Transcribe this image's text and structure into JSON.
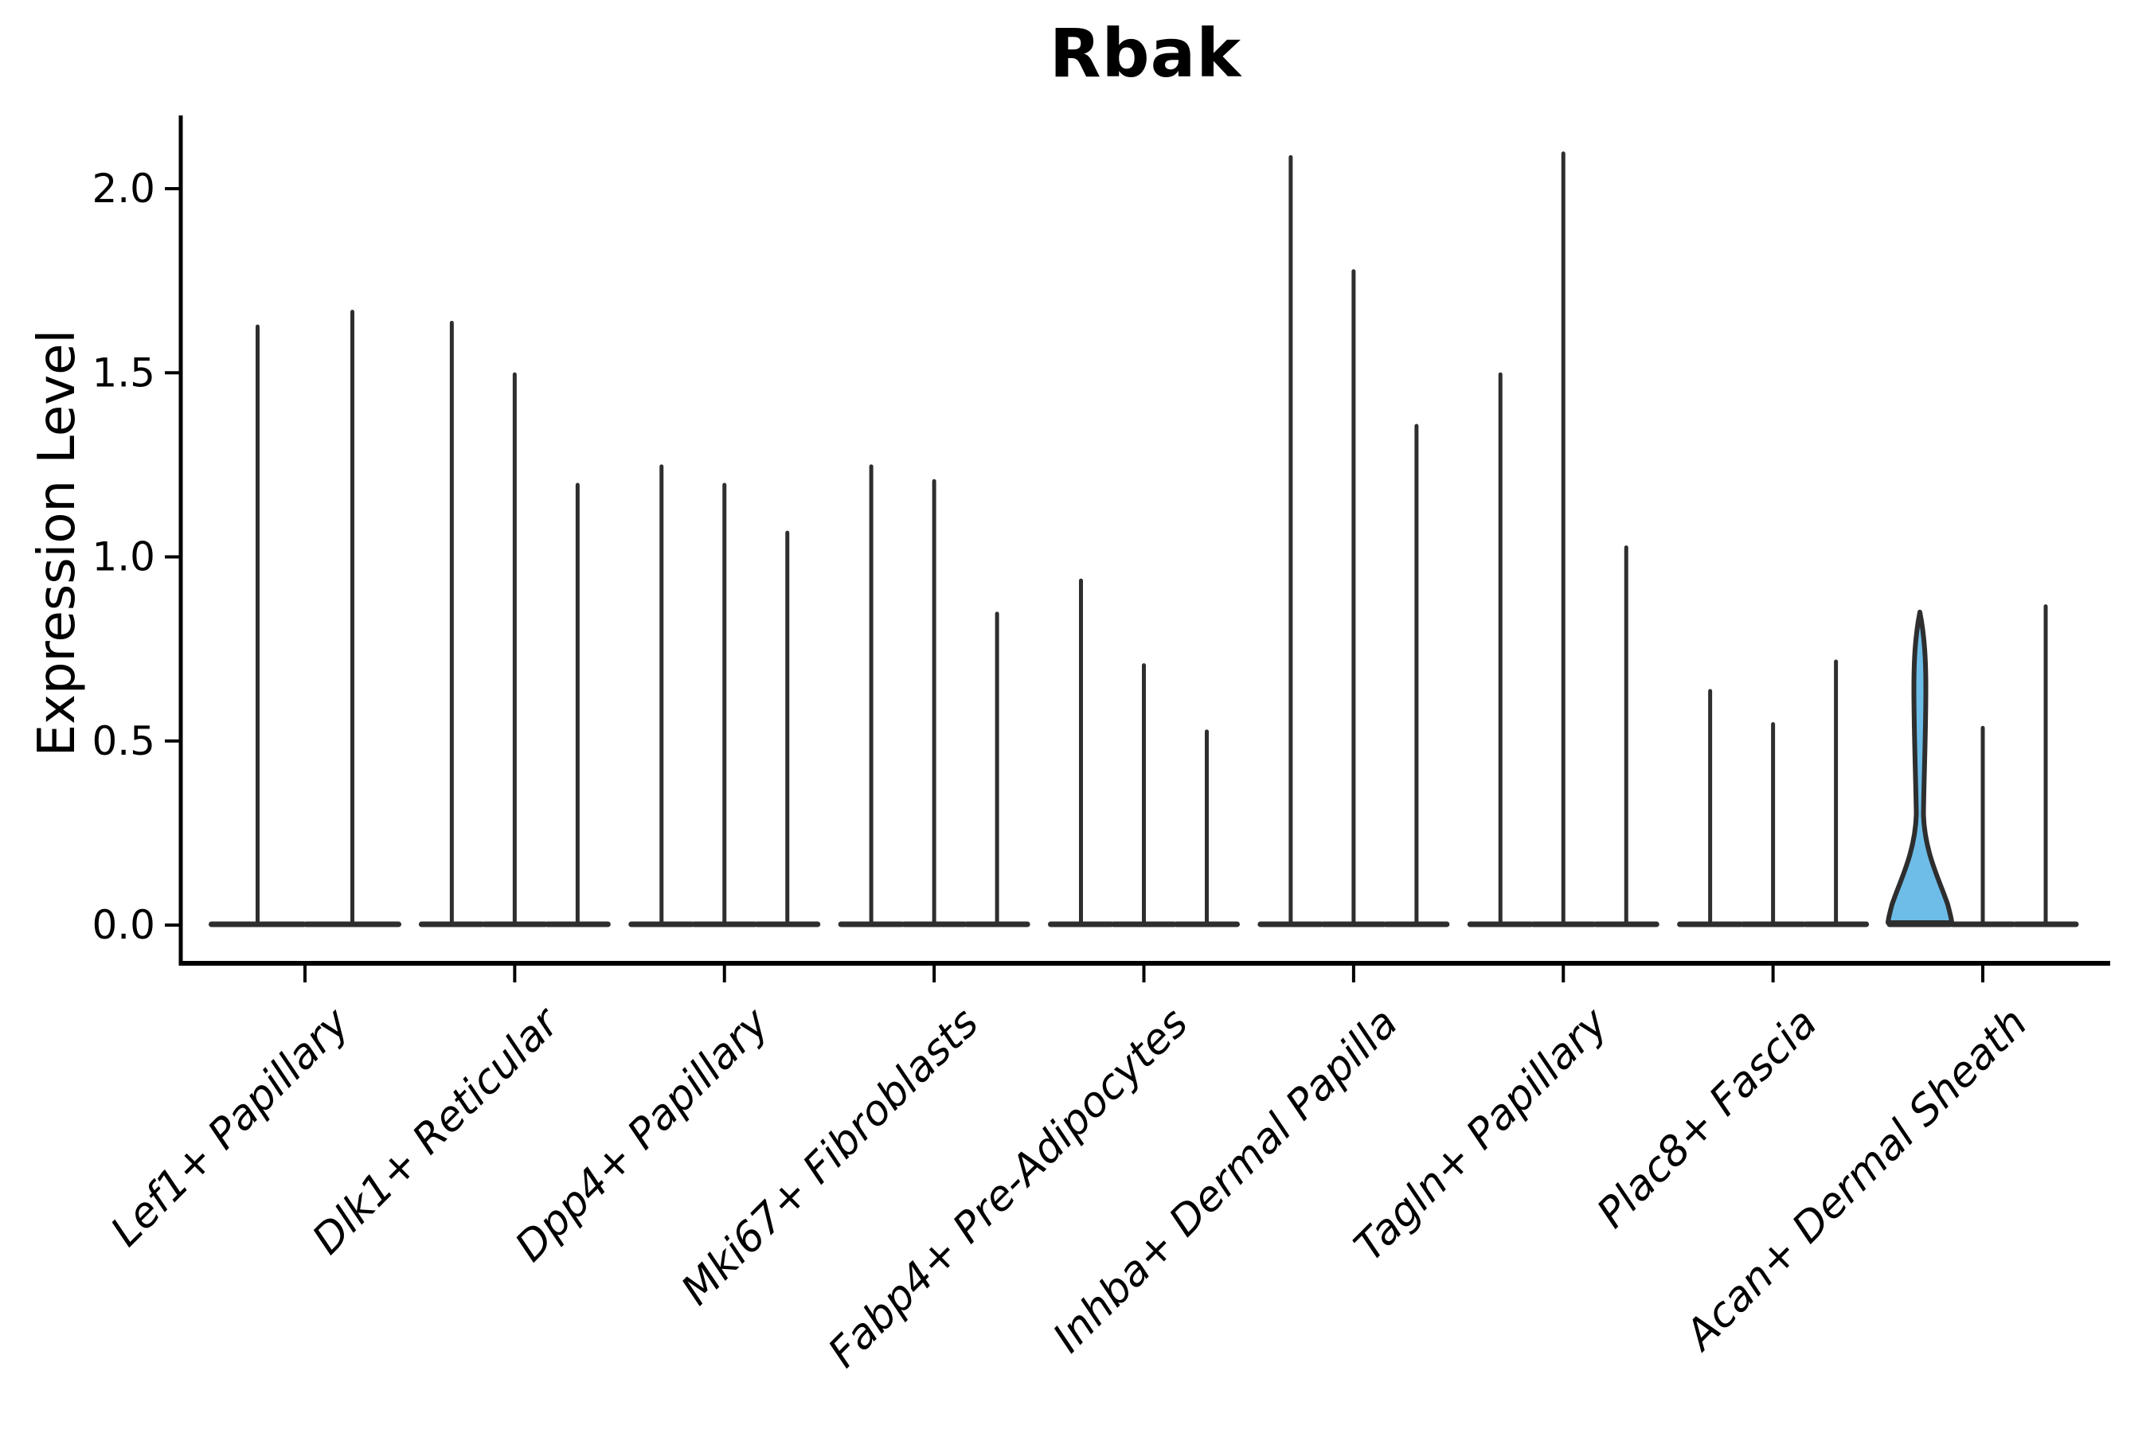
{
  "chart_data": {
    "type": "violin",
    "title": "Rbak",
    "xlabel": "",
    "ylabel": "Expression Level",
    "yticks": [
      0.0,
      0.5,
      1.0,
      1.5,
      2.0
    ],
    "ytick_labels": [
      "0.0",
      "0.5",
      "1.0",
      "1.5",
      "2.0"
    ],
    "ylim": [
      -0.1,
      2.2
    ],
    "grid": "off",
    "legend": "none",
    "categories": [
      "Lef1+ Papillary",
      "Dlk1+ Reticular",
      "Dpp4+ Papillary",
      "Mki67+ Fibroblasts",
      "Fabp4+ Pre-Adipocytes",
      "Inhba+ Dermal Papilla",
      "Tagln+ Papillary",
      "Plac8+ Fascia",
      "Acan+ Dermal Sheath"
    ],
    "groups": [
      {
        "category": "Lef1+ Papillary",
        "violin_max_values": [
          1.63,
          1.67
        ],
        "filled_violin_index": null
      },
      {
        "category": "Dlk1+ Reticular",
        "violin_max_values": [
          1.64,
          1.5,
          1.2
        ],
        "filled_violin_index": null
      },
      {
        "category": "Dpp4+ Papillary",
        "violin_max_values": [
          1.25,
          1.2,
          1.07
        ],
        "filled_violin_index": null
      },
      {
        "category": "Mki67+ Fibroblasts",
        "violin_max_values": [
          1.25,
          1.21,
          0.85
        ],
        "filled_violin_index": null
      },
      {
        "category": "Fabp4+ Pre-Adipocytes",
        "violin_max_values": [
          0.94,
          0.71,
          0.53
        ],
        "filled_violin_index": null
      },
      {
        "category": "Inhba+ Dermal Papilla",
        "violin_max_values": [
          2.09,
          1.78,
          1.36
        ],
        "filled_violin_index": null
      },
      {
        "category": "Tagln+ Papillary",
        "violin_max_values": [
          1.5,
          2.1,
          1.03
        ],
        "filled_violin_index": null
      },
      {
        "category": "Plac8+ Fascia",
        "violin_max_values": [
          0.64,
          0.55,
          0.72
        ],
        "filled_violin_index": null
      },
      {
        "category": "Acan+ Dermal Sheath",
        "violin_max_values": [
          0.85,
          0.54,
          0.87
        ],
        "filled_violin_index": 0
      }
    ],
    "highlight": {
      "category": "Acan+ Dermal Sheath",
      "violin_max": 0.85,
      "pinch_value": 0.3,
      "fill_color": "#6dbde8"
    },
    "colors": {
      "violin_stroke": "#2e2e2e",
      "axis_color": "#000000",
      "background": "#ffffff",
      "highlight_fill": "#6dbde8"
    }
  }
}
